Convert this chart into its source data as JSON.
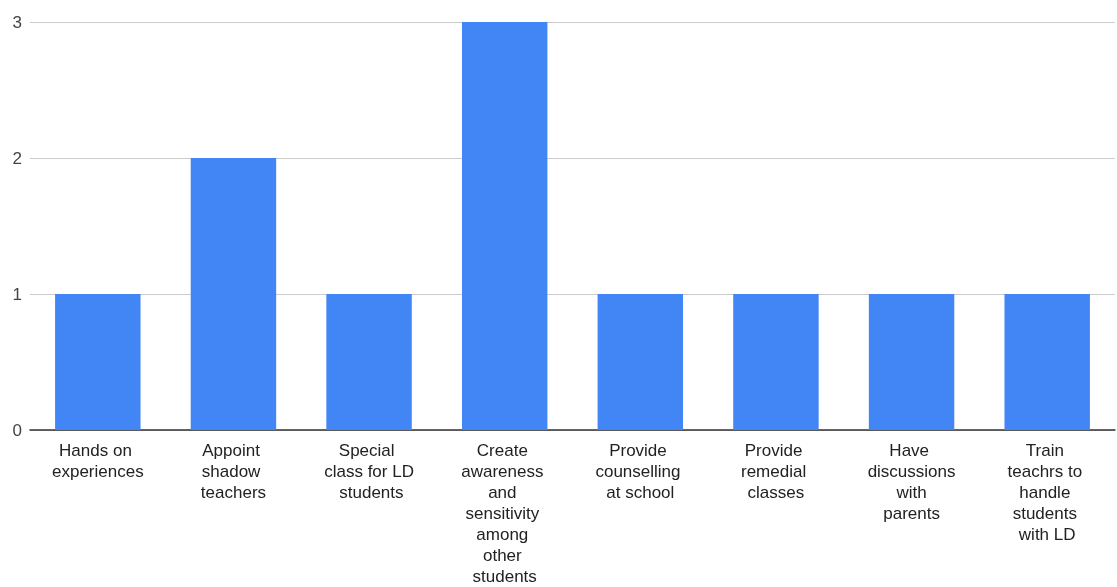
{
  "chart_data": {
    "type": "bar",
    "categories": [
      "Hands on experiences",
      "Appoint shadow teachers",
      "Special class for LD students",
      "Create awareness and sensitivity among other students",
      "Provide counselling at school",
      "Provide remedial classes",
      "Have discussions with parents",
      "Train teachrs to handle students with LD"
    ],
    "values": [
      1,
      2,
      1,
      3,
      1,
      1,
      1,
      1
    ],
    "color": "#4285f4",
    "ylim": [
      0,
      3
    ],
    "yticks": [
      0,
      1,
      2,
      3
    ],
    "grid": "y"
  }
}
